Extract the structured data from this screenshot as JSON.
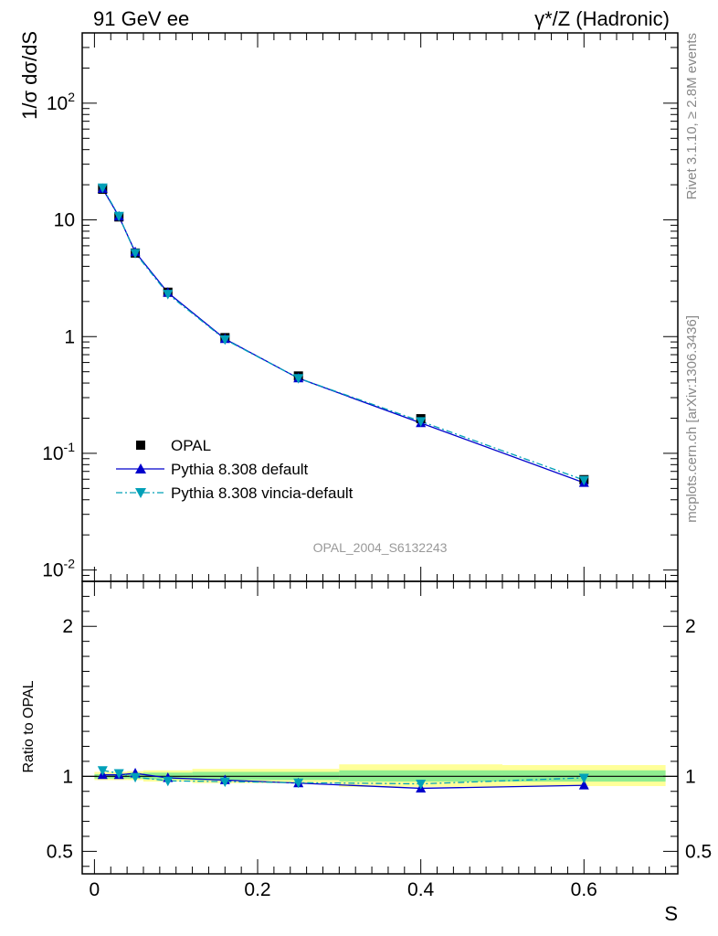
{
  "header": {
    "left_title": "91 GeV ee",
    "right_title": "γ*/Z (Hadronic)"
  },
  "side_labels": {
    "rivet": "Rivet 3.1.10, ≥ 2.8M events",
    "mcplots": "mcplots.cern.ch [arXiv:1306.3436]"
  },
  "reference_label": "OPAL_2004_S6132243",
  "colors": {
    "data": "#000000",
    "pythia_default": "#0000cc",
    "pythia_vincia": "#00a0b8",
    "band_inner": "#90ee90",
    "band_outer": "#ffff99"
  },
  "chart_data": [
    {
      "type": "line",
      "ylabel": "1/σ dσ/dS",
      "y_scale": "log",
      "ylim": [
        0.008,
        400
      ],
      "xlim": [
        -0.015,
        0.715
      ],
      "y_tick_labels": [
        "10^-2",
        "10^-1",
        "1",
        "10",
        "10^2"
      ],
      "legend": [
        "OPAL",
        "Pythia 8.308 default",
        "Pythia 8.308 vincia-default"
      ],
      "legend_position": "lower-left",
      "series": [
        {
          "name": "OPAL",
          "style": "markers",
          "x": [
            0.01,
            0.03,
            0.05,
            0.09,
            0.16,
            0.25,
            0.4,
            0.6
          ],
          "values": [
            18.3,
            10.6,
            5.2,
            2.4,
            0.98,
            0.46,
            0.198,
            0.0595
          ]
        },
        {
          "name": "Pythia 8.308 default",
          "style": "solid",
          "x": [
            0.01,
            0.03,
            0.05,
            0.09,
            0.16,
            0.25,
            0.4,
            0.6
          ],
          "values": [
            18.5,
            10.7,
            5.3,
            2.38,
            0.955,
            0.44,
            0.182,
            0.056
          ]
        },
        {
          "name": "Pythia 8.308 vincia-default",
          "style": "dashdot",
          "x": [
            0.01,
            0.03,
            0.05,
            0.09,
            0.16,
            0.25,
            0.4,
            0.6
          ],
          "values": [
            18.9,
            10.8,
            5.2,
            2.32,
            0.945,
            0.44,
            0.188,
            0.059
          ]
        }
      ]
    },
    {
      "type": "line",
      "xlabel": "S",
      "ylabel": "Ratio to OPAL",
      "ylim": [
        0.35,
        2.3
      ],
      "xlim": [
        -0.015,
        0.715
      ],
      "x_tick_labels": [
        "0",
        "0.2",
        "0.4",
        "0.6"
      ],
      "y_tick_labels": [
        "0.5",
        "1",
        "2"
      ],
      "bands": [
        {
          "x0": 0.0,
          "x1": 0.02,
          "inner": [
            0.985,
            1.015
          ],
          "outer": [
            0.975,
            1.03
          ]
        },
        {
          "x0": 0.02,
          "x1": 0.04,
          "inner": [
            0.985,
            1.015
          ],
          "outer": [
            0.975,
            1.03
          ]
        },
        {
          "x0": 0.04,
          "x1": 0.06,
          "inner": [
            0.985,
            1.02
          ],
          "outer": [
            0.975,
            1.035
          ]
        },
        {
          "x0": 0.06,
          "x1": 0.12,
          "inner": [
            0.98,
            1.025
          ],
          "outer": [
            0.965,
            1.04
          ]
        },
        {
          "x0": 0.12,
          "x1": 0.2,
          "inner": [
            0.975,
            1.03
          ],
          "outer": [
            0.955,
            1.05
          ]
        },
        {
          "x0": 0.2,
          "x1": 0.3,
          "inner": [
            0.975,
            1.03
          ],
          "outer": [
            0.955,
            1.05
          ]
        },
        {
          "x0": 0.3,
          "x1": 0.5,
          "inner": [
            0.965,
            1.04
          ],
          "outer": [
            0.93,
            1.08
          ]
        },
        {
          "x0": 0.5,
          "x1": 0.7,
          "inner": [
            0.965,
            1.04
          ],
          "outer": [
            0.935,
            1.075
          ]
        }
      ],
      "series": [
        {
          "name": "Pythia 8.308 default",
          "style": "solid",
          "x": [
            0.01,
            0.03,
            0.05,
            0.09,
            0.16,
            0.25,
            0.4,
            0.6
          ],
          "values": [
            1.01,
            1.01,
            1.02,
            0.99,
            0.975,
            0.955,
            0.92,
            0.94
          ]
        },
        {
          "name": "Pythia 8.308 vincia-default",
          "style": "dashdot",
          "x": [
            0.01,
            0.03,
            0.05,
            0.09,
            0.16,
            0.25,
            0.4,
            0.6
          ],
          "values": [
            1.04,
            1.02,
            0.995,
            0.97,
            0.965,
            0.958,
            0.95,
            0.99
          ]
        }
      ]
    }
  ]
}
